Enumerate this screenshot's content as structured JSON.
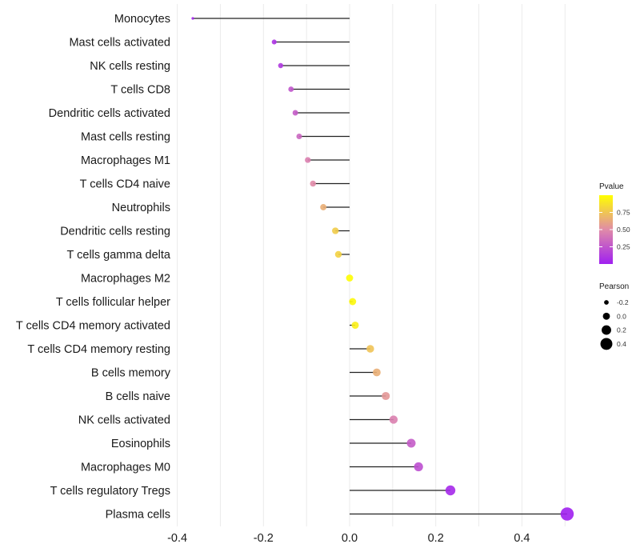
{
  "chart_data": {
    "type": "lollipop",
    "title": "",
    "xlabel": "",
    "ylabel": "",
    "xlim": [
      -0.4,
      0.52
    ],
    "x_ticks": [
      -0.4,
      -0.2,
      0.0,
      0.2,
      0.4
    ],
    "x_tick_labels": [
      "-0.4",
      "-0.2",
      "0.0",
      "0.2",
      "0.4"
    ],
    "grid": true,
    "categories": [
      "Monocytes",
      "Mast cells activated",
      "NK cells resting",
      "T cells CD8",
      "Dendritic cells activated",
      "Mast cells resting",
      "Macrophages M1",
      "T cells CD4 naive",
      "Neutrophils",
      "Dendritic cells resting",
      "T cells gamma delta",
      "Macrophages M2",
      "T cells follicular helper",
      "T cells CD4 memory activated",
      "T cells CD4 memory resting",
      "B cells memory",
      "B cells naive",
      "NK cells activated",
      "Eosinophils",
      "Macrophages M0",
      "T cells regulatory  Tregs",
      "Plasma cells"
    ],
    "pearson": [
      -0.364,
      -0.175,
      -0.16,
      -0.136,
      -0.126,
      -0.117,
      -0.097,
      -0.085,
      -0.061,
      -0.033,
      -0.026,
      0.0,
      0.007,
      0.013,
      0.048,
      0.063,
      0.084,
      0.102,
      0.143,
      0.16,
      0.234,
      0.505
    ],
    "pvalue": [
      0.02,
      0.09,
      0.12,
      0.25,
      0.28,
      0.33,
      0.45,
      0.5,
      0.65,
      0.78,
      0.8,
      0.99,
      0.97,
      0.93,
      0.74,
      0.65,
      0.55,
      0.45,
      0.28,
      0.22,
      0.04,
      0.0001
    ],
    "color_scale": {
      "title": "Pvalue",
      "low_color": "#A020F0",
      "high_color": "#FFFF00",
      "range": [
        0,
        1
      ],
      "ticks": [
        0.25,
        0.5,
        0.75
      ],
      "tick_labels": [
        "0.25",
        "0.50",
        "0.75"
      ]
    },
    "size_scale": {
      "title": "Pearson",
      "values": [
        -0.2,
        0.0,
        0.2,
        0.4
      ],
      "labels": [
        "-0.2",
        "0.0",
        "0.2",
        "0.4"
      ]
    },
    "stem_color": "#222222",
    "legend_position": "right"
  }
}
